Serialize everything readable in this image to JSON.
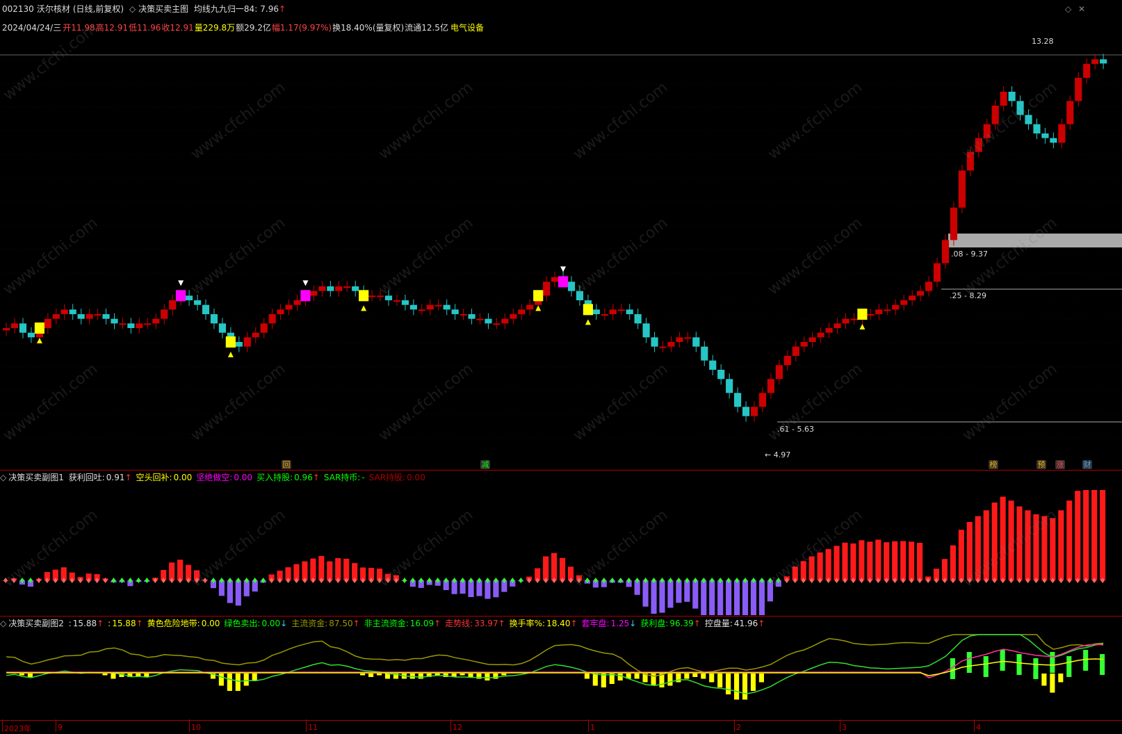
{
  "header": {
    "stock_code": "002130",
    "stock_name": "沃尔核材",
    "period": "(日线,前复权)",
    "main_indicator": "决策买卖主图",
    "ma_label": "均线九九归一84:",
    "ma_value": "7.96",
    "ma_arrow": "↑"
  },
  "quote": {
    "date": "2024/04/24/三",
    "open_label": "开",
    "open": "11.98",
    "high_label": "高",
    "high": "12.91",
    "low_label": "低",
    "low": "11.96",
    "close_label": "收",
    "close": "12.91",
    "vol_label": "量",
    "vol": "229.8万",
    "amount_label": "额",
    "amount": "29.2亿",
    "change_label": "幅",
    "change": "1.17(9.97%)",
    "turnover_label": "换",
    "turnover": "18.40%(量复权)",
    "float_label": "流通",
    "float": "12.5亿",
    "sector": "电气设备"
  },
  "price_labels": {
    "high": "13.28",
    "zone1": ".08 - 9.37",
    "zone2": ".25 - 8.29",
    "zone3": ".61 - 5.63",
    "low": "4.97"
  },
  "event_tags": {
    "hui": "回",
    "jian": "减",
    "bang": "榜",
    "yu": "预",
    "zhang": "涨",
    "cai": "财"
  },
  "sub1": {
    "name": "决策买卖副图1",
    "items": [
      {
        "label": "获利回吐:",
        "value": "0.91",
        "arrow": "↑",
        "color": "#e0e0e0"
      },
      {
        "label": "空头回补:",
        "value": "0.00",
        "arrow": "",
        "color": "#ffff00"
      },
      {
        "label": "坚绝做空:",
        "value": "0.00",
        "arrow": "",
        "color": "#ff00ff"
      },
      {
        "label": "买入持股:",
        "value": "0.96",
        "arrow": "↑",
        "color": "#00ff00"
      },
      {
        "label": "SAR持币:",
        "value": "-",
        "arrow": "",
        "color": "#00ff00"
      },
      {
        "label": "SAR持股:",
        "value": "0.00",
        "arrow": "",
        "color": "#aa0000"
      }
    ]
  },
  "sub2": {
    "name": "决策买卖副图2",
    "items": [
      {
        "label": ":",
        "value": "15.88",
        "arrow": "↑",
        "color": "#e0e0e0"
      },
      {
        "label": ":",
        "value": "15.88",
        "arrow": "↑",
        "color": "#ffff00"
      },
      {
        "label": "黄色危险地带:",
        "value": "0.00",
        "arrow": "",
        "color": "#ffff00"
      },
      {
        "label": "绿色卖出:",
        "value": "0.00",
        "arrow": "↓",
        "color": "#00ff00"
      },
      {
        "label": "主流资金:",
        "value": "87.50",
        "arrow": "↑",
        "color": "#999900"
      },
      {
        "label": "非主流资金:",
        "value": "16.09",
        "arrow": "↑",
        "color": "#00ff00"
      },
      {
        "label": "走势线:",
        "value": "33.97",
        "arrow": "↑",
        "color": "#ff3333"
      },
      {
        "label": "换手率%:",
        "value": "18.40",
        "arrow": "↑",
        "color": "#ffff00"
      },
      {
        "label": "套牢盘:",
        "value": "1.25",
        "arrow": "↓",
        "color": "#ff00ff"
      },
      {
        "label": "获利盘:",
        "value": "96.39",
        "arrow": "↑",
        "color": "#00ff00"
      },
      {
        "label": "控盘量:",
        "value": "41.96",
        "arrow": "↑",
        "color": "#e0e0e0"
      }
    ]
  },
  "time_axis": [
    {
      "label": "2023年"
    },
    {
      "label": "9"
    },
    {
      "label": "10"
    },
    {
      "label": "11"
    },
    {
      "label": "12"
    },
    {
      "label": "1"
    },
    {
      "label": "2"
    },
    {
      "label": "3"
    },
    {
      "label": "4"
    }
  ],
  "watermark": "www.cfchi.com",
  "colors": {
    "up": "#cc0000",
    "down": "#26c6c6",
    "yellow": "#ffff00",
    "magenta": "#ff00ff",
    "macd_neg": "#8a5cf6",
    "macd_pos": "#ff1a1a",
    "separator": "#aa0000"
  },
  "chart_data": {
    "type": "candlestick",
    "closes": [
      7.2,
      7.3,
      7.1,
      7.0,
      7.2,
      7.4,
      7.5,
      7.6,
      7.5,
      7.4,
      7.5,
      7.5,
      7.4,
      7.3,
      7.3,
      7.2,
      7.3,
      7.3,
      7.4,
      7.6,
      7.8,
      7.9,
      7.8,
      7.7,
      7.5,
      7.3,
      7.1,
      6.9,
      6.8,
      7.0,
      7.1,
      7.3,
      7.5,
      7.6,
      7.7,
      7.8,
      7.9,
      8.0,
      8.1,
      8.0,
      8.1,
      8.1,
      8.0,
      7.9,
      7.9,
      7.9,
      7.8,
      7.8,
      7.7,
      7.6,
      7.6,
      7.7,
      7.7,
      7.6,
      7.5,
      7.5,
      7.4,
      7.4,
      7.3,
      7.3,
      7.4,
      7.5,
      7.6,
      7.7,
      7.9,
      8.2,
      8.3,
      8.2,
      8.0,
      7.8,
      7.6,
      7.5,
      7.5,
      7.6,
      7.6,
      7.5,
      7.3,
      7.0,
      6.8,
      6.8,
      6.9,
      7.0,
      7.0,
      6.8,
      6.5,
      6.3,
      6.1,
      5.8,
      5.5,
      5.3,
      5.5,
      5.8,
      6.1,
      6.4,
      6.6,
      6.8,
      6.9,
      7.0,
      7.1,
      7.2,
      7.3,
      7.4,
      7.4,
      7.5,
      7.5,
      7.6,
      7.6,
      7.7,
      7.8,
      7.9,
      8.0,
      8.2,
      8.6,
      9.1,
      9.8,
      10.6,
      11.0,
      11.3,
      11.6,
      12.0,
      12.3,
      12.1,
      11.8,
      11.6,
      11.4,
      11.3,
      11.2,
      11.6,
      12.1,
      12.6,
      12.9,
      13.0,
      12.91
    ],
    "ylim": [
      4.5,
      13.5
    ]
  }
}
